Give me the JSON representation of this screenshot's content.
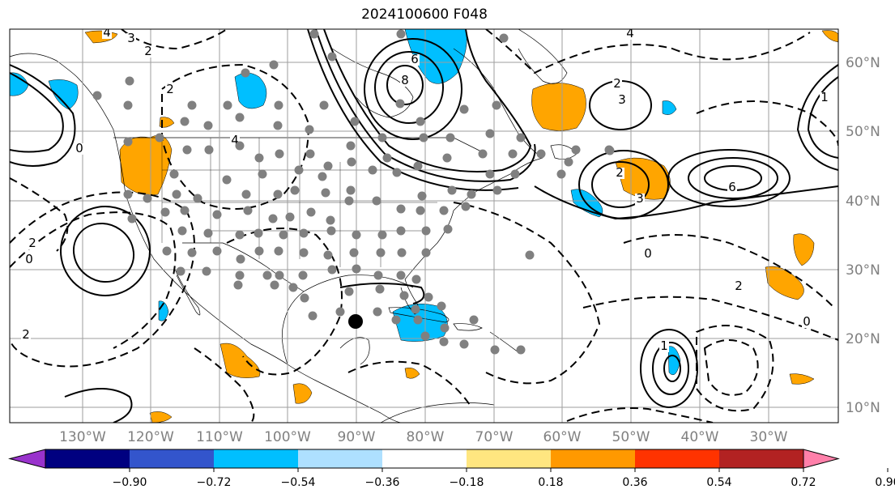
{
  "title": "2024100600 F048",
  "lon_labels": [
    "130°W",
    "120°W",
    "110°W",
    "100°W",
    "90°W",
    "80°W",
    "70°W",
    "60°W",
    "50°W",
    "40°W",
    "30°W"
  ],
  "lat_labels": [
    "60°N",
    "50°N",
    "40°N",
    "30°N",
    "20°N",
    "10°N"
  ],
  "colorbar": {
    "ticks": [
      "−0.90",
      "−0.72",
      "−0.54",
      "−0.36",
      "−0.18",
      "0.18",
      "0.36",
      "0.54",
      "0.72",
      "0.90"
    ],
    "colors": [
      "#9933cc",
      "#000080",
      "#3355cc",
      "#00bfff",
      "#aee0ff",
      "#ffffff",
      "#ffe680",
      "#ff9900",
      "#ff3300",
      "#b22222",
      "#ff80aa"
    ]
  },
  "contour_labels": [
    "4",
    "3",
    "2",
    "0",
    "6",
    "8",
    "3",
    "6",
    "4",
    "2",
    "0",
    "2",
    "1",
    "2",
    "0",
    "2",
    "4",
    "2",
    "0",
    "2",
    "1",
    "3"
  ],
  "shading": {
    "positive": "#ffa500",
    "negative": "#00bfff"
  },
  "marker": {
    "name": "storm-center",
    "color": "#000000"
  }
}
